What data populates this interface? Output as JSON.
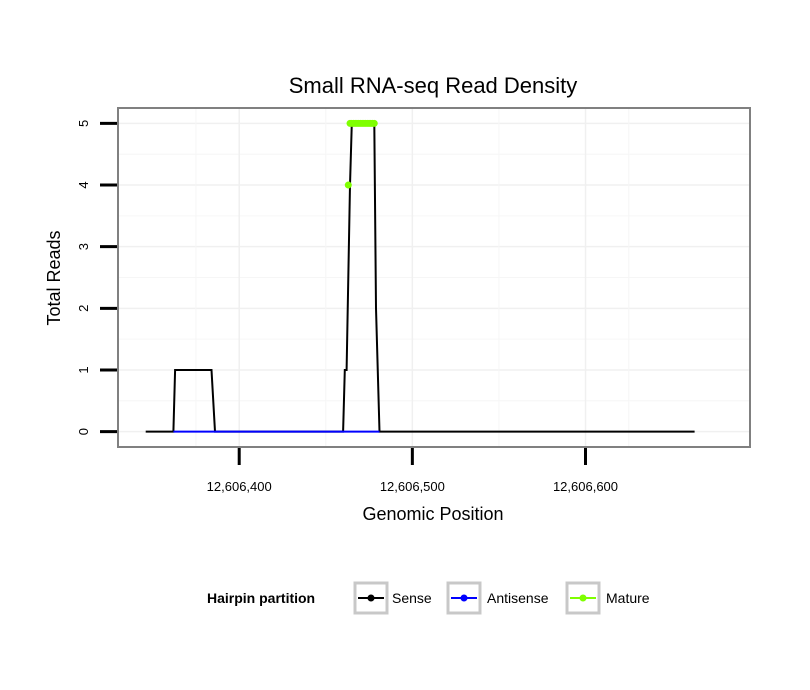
{
  "chart_data": {
    "type": "line",
    "title": "Small RNA-seq Read Density",
    "xlabel": "Genomic Position",
    "ylabel": "Total Reads",
    "xlim": [
      12606330,
      12606695
    ],
    "ylim": [
      -0.25,
      5.25
    ],
    "x_ticks": [
      12606400,
      12606500,
      12606600
    ],
    "x_tick_labels": [
      "12,606,400",
      "12,606,500",
      "12,606,600"
    ],
    "y_ticks": [
      0,
      1,
      2,
      3,
      4,
      5
    ],
    "y_tick_labels": [
      "0",
      "1",
      "2",
      "3",
      "4",
      "5"
    ],
    "grid": true,
    "legend": {
      "title": "Hairpin partition",
      "position": "bottom",
      "entries": [
        "Sense",
        "Antisense",
        "Mature"
      ]
    },
    "series": [
      {
        "name": "Sense",
        "color": "#000000",
        "x": [
          12606346,
          12606362,
          12606363,
          12606384,
          12606386,
          12606444,
          12606460,
          12606461,
          12606462,
          12606464,
          12606465,
          12606478,
          12606479,
          12606481,
          12606663
        ],
        "y": [
          0,
          0,
          1,
          1,
          0,
          0,
          0,
          1,
          1,
          4,
          5,
          5,
          2,
          0,
          0
        ]
      },
      {
        "name": "Antisense",
        "color": "#0000ff",
        "x": [
          12606362,
          12606386,
          12606460,
          12606481
        ],
        "y": [
          0,
          0,
          0,
          0
        ]
      },
      {
        "name": "Mature",
        "color": "#7fff00",
        "x": [
          12606463,
          12606464,
          12606465,
          12606466,
          12606467,
          12606468,
          12606469,
          12606470,
          12606471,
          12606472,
          12606473,
          12606474,
          12606475,
          12606476,
          12606477,
          12606478
        ],
        "y": [
          4,
          5,
          5,
          5,
          5,
          5,
          5,
          5,
          5,
          5,
          5,
          5,
          5,
          5,
          5,
          5
        ]
      }
    ]
  }
}
